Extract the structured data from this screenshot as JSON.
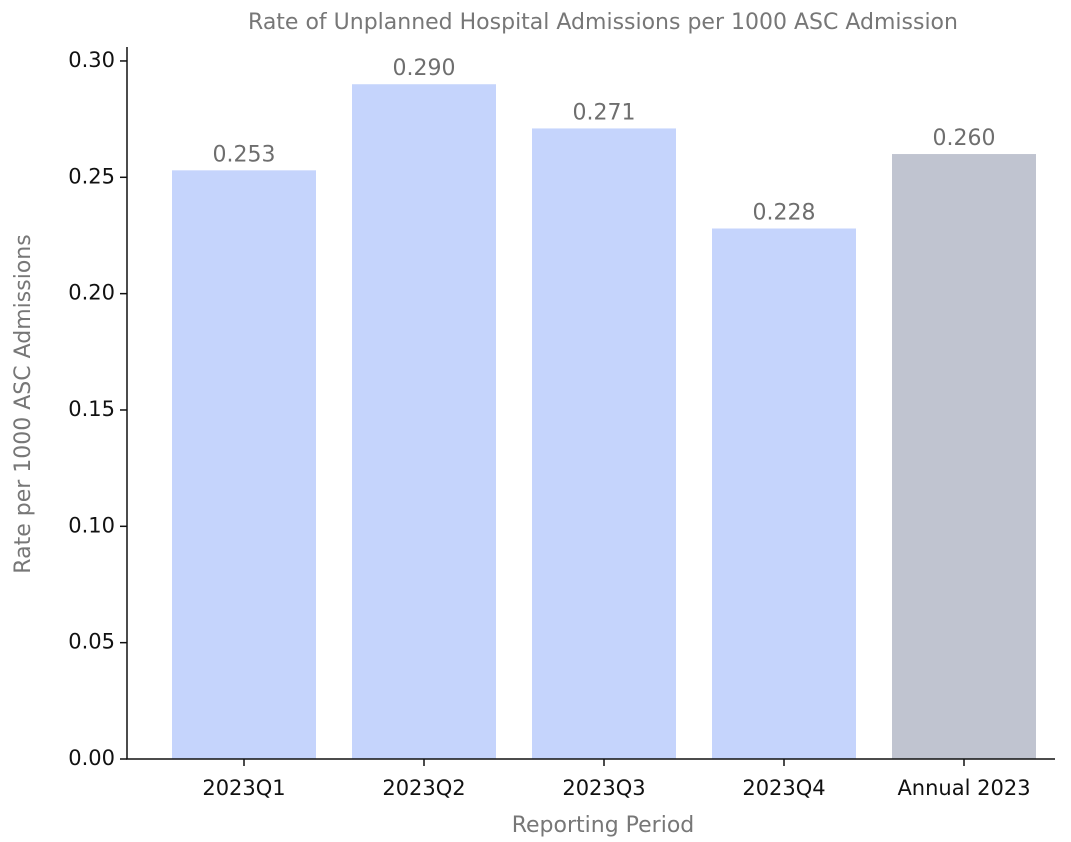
{
  "chart_data": {
    "type": "bar",
    "title": "Rate of Unplanned Hospital Admissions per 1000 ASC Admission",
    "xlabel": "Reporting Period",
    "ylabel": "Rate per 1000 ASC Admissions",
    "categories": [
      "2023Q1",
      "2023Q2",
      "2023Q3",
      "2023Q4",
      "Annual 2023"
    ],
    "values": [
      0.253,
      0.29,
      0.271,
      0.228,
      0.26
    ],
    "value_labels": [
      "0.253",
      "0.290",
      "0.271",
      "0.228",
      "0.260"
    ],
    "colors": [
      "#c5d4fc",
      "#c5d4fc",
      "#c5d4fc",
      "#c5d4fc",
      "#c0c4d0"
    ],
    "ylim": [
      0,
      0.306
    ],
    "yticks": [
      {
        "value": 0,
        "label": "0.00"
      },
      {
        "value": 0.05,
        "label": "0.05"
      },
      {
        "value": 0.1,
        "label": "0.10"
      },
      {
        "value": 0.15,
        "label": "0.15"
      },
      {
        "value": 0.2,
        "label": "0.20"
      },
      {
        "value": 0.25,
        "label": "0.25"
      },
      {
        "value": 0.3,
        "label": "0.30"
      }
    ],
    "grid": false
  }
}
